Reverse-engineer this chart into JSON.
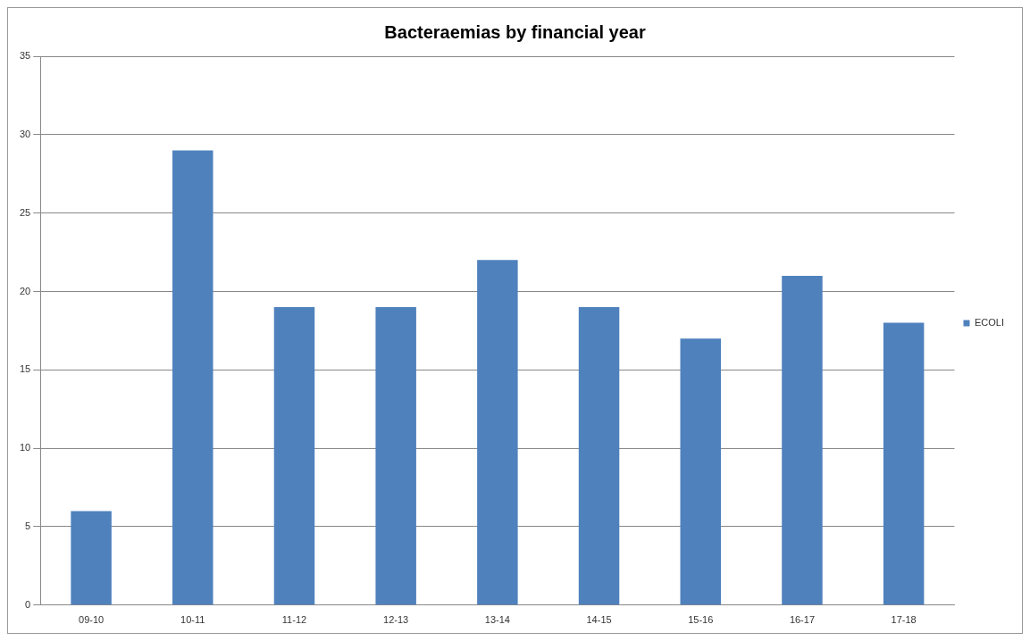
{
  "chart_data": {
    "type": "bar",
    "title": "Bacteraemias by financial year",
    "categories": [
      "09-10",
      "10-11",
      "11-12",
      "12-13",
      "13-14",
      "14-15",
      "15-16",
      "16-17",
      "17-18"
    ],
    "series": [
      {
        "name": "ECOLI",
        "color": "#4f81bd",
        "values": [
          6,
          29,
          19,
          19,
          22,
          19,
          17,
          21,
          18
        ]
      }
    ],
    "ylim": [
      0,
      35
    ],
    "yticks": [
      0,
      5,
      10,
      15,
      20,
      25,
      30,
      35
    ],
    "grid": "y",
    "legend": "right"
  }
}
